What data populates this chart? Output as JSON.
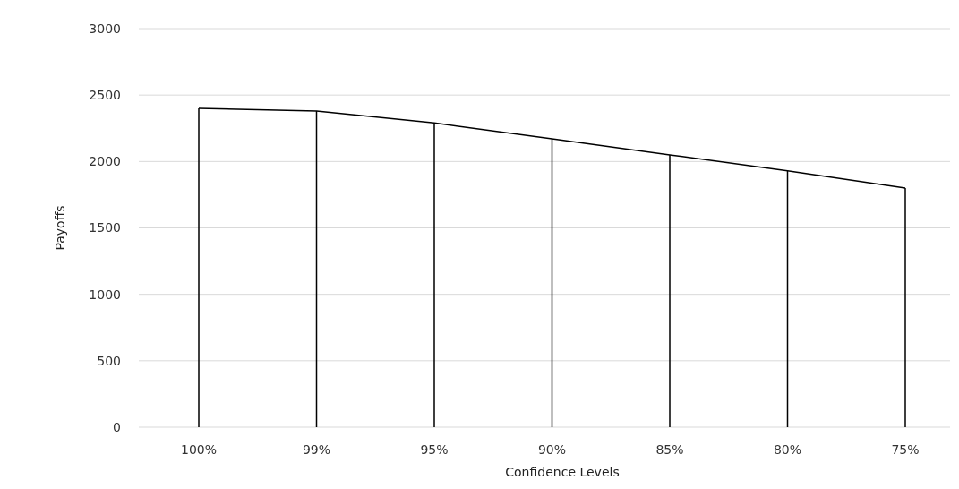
{
  "chart_data": {
    "type": "line",
    "xlabel": "Confidence Levels",
    "ylabel": "Payoffs",
    "categories": [
      "100%",
      "99%",
      "95%",
      "90%",
      "85%",
      "80%",
      "75%"
    ],
    "series": [
      {
        "color": "#000000",
        "values": [
          2400,
          2380,
          2290,
          2170,
          2050,
          1930,
          1800
        ]
      },
      {
        "type": "bar",
        "color": "#000000",
        "values": [
          2400,
          2380,
          2290,
          2170,
          2050,
          1930,
          1800
        ]
      }
    ],
    "ylim": [
      0,
      3000
    ],
    "yticks": [
      0,
      500,
      1000,
      1500,
      2000,
      2500,
      3000
    ],
    "grid": "y",
    "marker": "none"
  }
}
